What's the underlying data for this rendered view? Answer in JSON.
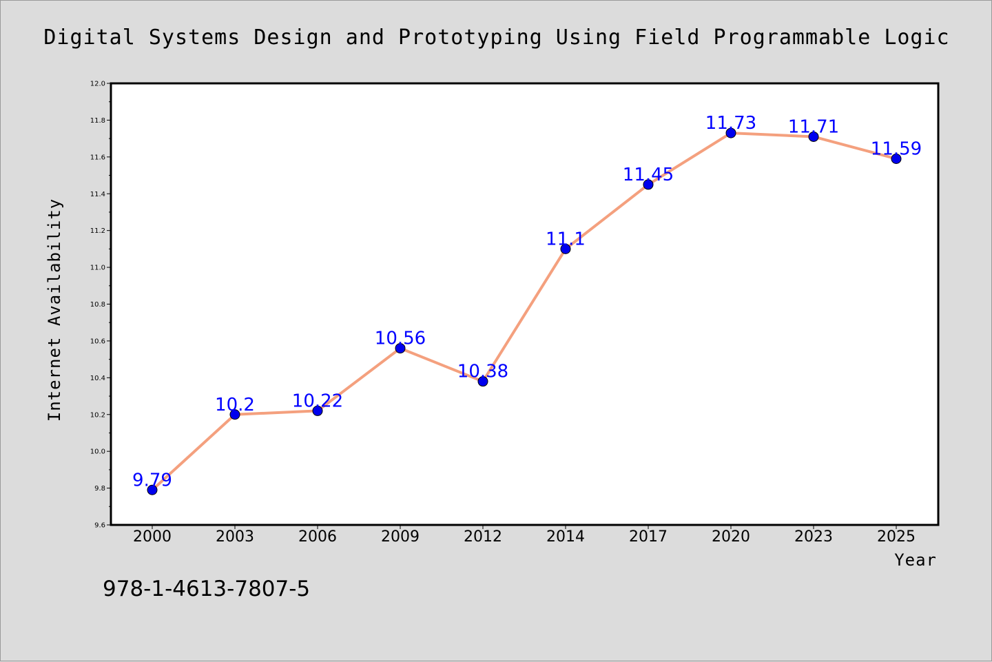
{
  "chart_data": {
    "type": "line",
    "title": "Digital Systems Design and Prototyping Using Field Programmable Logic",
    "xlabel": "Year",
    "ylabel": "Internet Availability",
    "categories": [
      "2000",
      "2003",
      "2006",
      "2009",
      "2012",
      "2014",
      "2017",
      "2020",
      "2023",
      "2025"
    ],
    "series": [
      {
        "values": [
          9.79,
          10.2,
          10.22,
          10.56,
          10.38,
          11.1,
          11.45,
          11.73,
          11.71,
          11.59
        ],
        "data_labels": [
          "9.79",
          "10.2",
          "10.22",
          "10.56",
          "10.38",
          "11.1",
          "11.45",
          "11.73",
          "11.71",
          "11.59"
        ],
        "line_color": "#f4a07e",
        "marker_color": "#0000ee",
        "label_color": "#0000ff"
      }
    ],
    "ylim": [
      9.6,
      12.0
    ],
    "yticks": [
      "9.6",
      "9.8",
      "10.0",
      "10.2",
      "10.4",
      "10.6",
      "10.8",
      "11.0",
      "11.2",
      "11.4",
      "11.6",
      "11.8",
      "12.0"
    ],
    "grid": false,
    "legend": "none"
  },
  "footer": {
    "isbn": "978-1-4613-7807-5"
  },
  "colors": {
    "background": "#dcdcdc",
    "plot_background": "#ffffff"
  }
}
